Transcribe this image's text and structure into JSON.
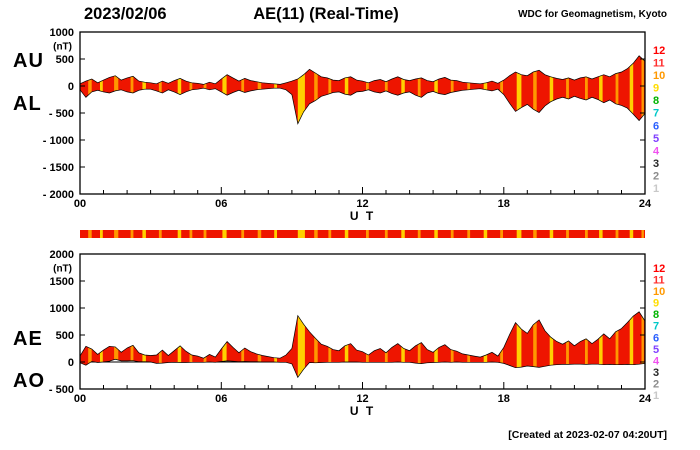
{
  "header": {
    "date": "2023/02/06",
    "title": "AE(11) (Real-Time)",
    "org": "WDC for Geomagnetism, Kyoto"
  },
  "footer": {
    "created": "[Created at 2023-02-07 04:20UT]"
  },
  "colors": {
    "band_fill": "#ee1500",
    "orange": "#ff9800",
    "yellow": "#ffd000",
    "axis": "#000000"
  },
  "legend_station_counts": [
    {
      "n": "12",
      "color": "#ff0000"
    },
    {
      "n": "11",
      "color": "#ff2d2d"
    },
    {
      "n": "10",
      "color": "#ff9900"
    },
    {
      "n": "9",
      "color": "#ffdd00"
    },
    {
      "n": "8",
      "color": "#00b400"
    },
    {
      "n": "7",
      "color": "#00c8c8"
    },
    {
      "n": "6",
      "color": "#2a5fff"
    },
    {
      "n": "5",
      "color": "#8040ff"
    },
    {
      "n": "4",
      "color": "#f050f0"
    },
    {
      "n": "3",
      "color": "#282828"
    },
    {
      "n": "2",
      "color": "#8c8c8c"
    },
    {
      "n": "1",
      "color": "#c8c8c8"
    }
  ],
  "station_stripes": [
    {
      "t": 0.35,
      "w": 0.15,
      "c": "orange"
    },
    {
      "t": 0.85,
      "w": 0.12,
      "c": "yellow"
    },
    {
      "t": 1.45,
      "w": 0.18,
      "c": "orange"
    },
    {
      "t": 2.15,
      "w": 0.12,
      "c": "orange"
    },
    {
      "t": 2.65,
      "w": 0.15,
      "c": "yellow"
    },
    {
      "t": 3.35,
      "w": 0.12,
      "c": "orange"
    },
    {
      "t": 4.15,
      "w": 0.15,
      "c": "yellow"
    },
    {
      "t": 4.65,
      "w": 0.12,
      "c": "orange"
    },
    {
      "t": 5.25,
      "w": 0.12,
      "c": "orange"
    },
    {
      "t": 6.05,
      "w": 0.18,
      "c": "yellow"
    },
    {
      "t": 6.85,
      "w": 0.12,
      "c": "orange"
    },
    {
      "t": 7.55,
      "w": 0.15,
      "c": "orange"
    },
    {
      "t": 8.25,
      "w": 0.12,
      "c": "yellow"
    },
    {
      "t": 9.25,
      "w": 0.3,
      "c": "yellow"
    },
    {
      "t": 9.95,
      "w": 0.15,
      "c": "orange"
    },
    {
      "t": 10.55,
      "w": 0.12,
      "c": "orange"
    },
    {
      "t": 11.25,
      "w": 0.15,
      "c": "yellow"
    },
    {
      "t": 12.15,
      "w": 0.12,
      "c": "orange"
    },
    {
      "t": 12.95,
      "w": 0.12,
      "c": "orange"
    },
    {
      "t": 13.65,
      "w": 0.15,
      "c": "yellow"
    },
    {
      "t": 14.35,
      "w": 0.12,
      "c": "orange"
    },
    {
      "t": 15.05,
      "w": 0.15,
      "c": "yellow"
    },
    {
      "t": 15.75,
      "w": 0.12,
      "c": "orange"
    },
    {
      "t": 16.45,
      "w": 0.12,
      "c": "orange"
    },
    {
      "t": 17.15,
      "w": 0.15,
      "c": "yellow"
    },
    {
      "t": 17.85,
      "w": 0.12,
      "c": "orange"
    },
    {
      "t": 18.55,
      "w": 0.2,
      "c": "yellow"
    },
    {
      "t": 19.25,
      "w": 0.15,
      "c": "orange"
    },
    {
      "t": 19.95,
      "w": 0.15,
      "c": "yellow"
    },
    {
      "t": 20.65,
      "w": 0.12,
      "c": "orange"
    },
    {
      "t": 21.45,
      "w": 0.12,
      "c": "orange"
    },
    {
      "t": 22.05,
      "w": 0.15,
      "c": "yellow"
    },
    {
      "t": 22.75,
      "w": 0.12,
      "c": "orange"
    },
    {
      "t": 23.35,
      "w": 0.15,
      "c": "yellow"
    },
    {
      "t": 23.85,
      "w": 0.1,
      "c": "orange"
    }
  ],
  "chart_data": [
    {
      "type": "area",
      "panel": "top",
      "title": "AU / AL auroral electrojet indices, 2023/02/06",
      "xlabel": "U T",
      "ylabel": "(nT)",
      "x_start": 0,
      "x_end": 24,
      "x_step": 0.25,
      "xtick_hours": [
        0,
        6,
        12,
        18,
        24
      ],
      "xtick_labels": [
        "00",
        "06",
        "12",
        "18",
        "24"
      ],
      "ylim": [
        -2000,
        1000
      ],
      "ytick_values": [
        1000,
        500,
        0,
        -500,
        -1000,
        -1500,
        -2000
      ],
      "ytick_labels": [
        "1000",
        "500",
        "0",
        "- 500",
        "- 1000",
        "- 1500",
        "- 2000"
      ],
      "series": [
        {
          "name": "AU",
          "values": [
            40,
            90,
            130,
            60,
            110,
            160,
            190,
            110,
            150,
            180,
            90,
            70,
            60,
            40,
            90,
            50,
            100,
            140,
            90,
            60,
            50,
            30,
            70,
            40,
            130,
            210,
            150,
            90,
            140,
            100,
            80,
            60,
            50,
            40,
            30,
            60,
            90,
            130,
            210,
            310,
            240,
            170,
            150,
            110,
            100,
            150,
            170,
            110,
            90,
            60,
            100,
            120,
            80,
            130,
            170,
            120,
            100,
            130,
            150,
            100,
            80,
            130,
            160,
            110,
            100,
            70,
            60,
            50,
            40,
            60,
            90,
            50,
            110,
            190,
            260,
            210,
            190,
            260,
            290,
            210,
            170,
            140,
            120,
            150,
            110,
            150,
            170,
            130,
            170,
            210,
            170,
            230,
            260,
            320,
            420,
            560,
            460
          ]
        },
        {
          "name": "AL",
          "values": [
            -70,
            -210,
            -110,
            -80,
            -110,
            -130,
            -90,
            -70,
            -110,
            -130,
            -80,
            -60,
            -60,
            -90,
            -130,
            -70,
            -110,
            -160,
            -110,
            -70,
            -60,
            -40,
            -70,
            -50,
            -110,
            -170,
            -120,
            -80,
            -120,
            -90,
            -70,
            -60,
            -50,
            -40,
            -40,
            -70,
            -160,
            -700,
            -480,
            -330,
            -270,
            -190,
            -160,
            -120,
            -110,
            -150,
            -170,
            -110,
            -100,
            -70,
            -110,
            -130,
            -90,
            -140,
            -170,
            -130,
            -110,
            -170,
            -210,
            -130,
            -100,
            -140,
            -160,
            -120,
            -100,
            -80,
            -70,
            -60,
            -50,
            -70,
            -90,
            -60,
            -160,
            -320,
            -470,
            -400,
            -340,
            -430,
            -490,
            -370,
            -290,
            -240,
            -210,
            -240,
            -190,
            -230,
            -260,
            -210,
            -250,
            -310,
            -260,
            -330,
            -360,
            -410,
            -520,
            -640,
            -510
          ]
        }
      ]
    },
    {
      "type": "area",
      "panel": "bottom",
      "title": "AE / AO auroral electrojet indices, 2023/02/06",
      "xlabel": "U T",
      "ylabel": "(nT)",
      "x_start": 0,
      "x_end": 24,
      "x_step": 0.25,
      "xtick_hours": [
        0,
        6,
        12,
        18,
        24
      ],
      "xtick_labels": [
        "00",
        "06",
        "12",
        "18",
        "24"
      ],
      "ylim": [
        -500,
        2000
      ],
      "ytick_values": [
        2000,
        1500,
        1000,
        500,
        0,
        -500
      ],
      "ytick_labels": [
        "2000",
        "1500",
        "1000",
        "500",
        "0",
        "- 500"
      ],
      "series": [
        {
          "name": "AE",
          "values": [
            110,
            290,
            240,
            140,
            220,
            290,
            280,
            180,
            260,
            310,
            170,
            130,
            120,
            130,
            220,
            120,
            210,
            300,
            200,
            130,
            110,
            70,
            140,
            90,
            240,
            380,
            270,
            170,
            260,
            190,
            150,
            120,
            100,
            80,
            70,
            130,
            250,
            860,
            700,
            560,
            440,
            330,
            290,
            230,
            210,
            300,
            340,
            220,
            190,
            130,
            210,
            250,
            170,
            270,
            340,
            250,
            210,
            300,
            360,
            230,
            180,
            270,
            320,
            230,
            200,
            150,
            130,
            110,
            90,
            130,
            180,
            110,
            270,
            510,
            730,
            610,
            530,
            690,
            780,
            580,
            460,
            380,
            330,
            390,
            300,
            380,
            430,
            340,
            420,
            520,
            430,
            560,
            620,
            730,
            850,
            930,
            760
          ]
        },
        {
          "name": "AO",
          "values": [
            -15,
            -60,
            10,
            -10,
            0,
            15,
            50,
            20,
            20,
            25,
            5,
            5,
            0,
            -25,
            -20,
            -10,
            -5,
            -10,
            -10,
            -5,
            -5,
            -5,
            0,
            -5,
            10,
            20,
            15,
            5,
            10,
            5,
            5,
            0,
            0,
            0,
            -5,
            -5,
            -35,
            -285,
            -135,
            -10,
            -15,
            -10,
            -5,
            -5,
            -5,
            0,
            0,
            0,
            -5,
            -5,
            -5,
            -5,
            -5,
            -5,
            0,
            -5,
            -5,
            -20,
            -30,
            -15,
            -10,
            -5,
            0,
            -5,
            0,
            -5,
            -5,
            -5,
            -5,
            -5,
            0,
            -5,
            -25,
            -65,
            -105,
            -95,
            -75,
            -85,
            -100,
            -80,
            -60,
            -50,
            -45,
            -45,
            -40,
            -40,
            -45,
            -40,
            -40,
            -50,
            -45,
            -50,
            -50,
            -45,
            -50,
            -40,
            -25
          ]
        }
      ]
    }
  ]
}
